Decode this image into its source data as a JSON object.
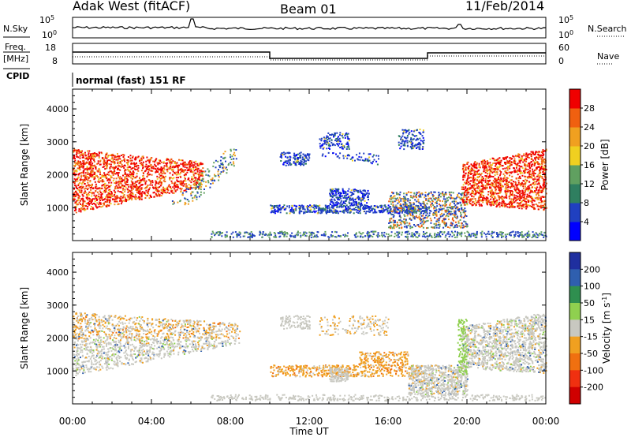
{
  "header": {
    "site": "Adak West (fitACF)",
    "beam": "Beam 01",
    "date": "11/Feb/2014"
  },
  "labels": {
    "nsky": "N.Sky",
    "nsearch": "N.Search",
    "freq_line1": "Freq.",
    "freq_line2": "[MHz]",
    "nave": "Nave",
    "cpid": "CPID",
    "cpid_value": "normal (fast) 151 RF",
    "noise_tick_top": "10^5",
    "noise_tick_bottom": "10^0",
    "noise_right_top": "10^5",
    "noise_right_bottom": "10^0",
    "freq_tick_top": "18",
    "freq_tick_bottom": "8",
    "nave_tick_top": "60",
    "nave_tick_bottom": "0"
  },
  "chart_data": [
    {
      "type": "heatmap",
      "panel": "power",
      "ylabel": "Slant Range [km]",
      "yticks": [
        "1000",
        "2000",
        "3000",
        "4000"
      ],
      "ylim": [
        0,
        4600
      ],
      "xlim_hours": [
        0,
        24
      ],
      "colorbar": {
        "label": "Power [dB]",
        "ticks": [
          "4",
          "8",
          "12",
          "16",
          "20",
          "24",
          "28"
        ],
        "colors": [
          "#0000ff",
          "#2040c0",
          "#2f7f60",
          "#60a060",
          "#f0d020",
          "#f0a020",
          "#f06010",
          "#f00000"
        ]
      }
    },
    {
      "type": "heatmap",
      "panel": "velocity",
      "ylabel": "Slant Range [km]",
      "yticks": [
        "1000",
        "2000",
        "3000",
        "4000"
      ],
      "ylim": [
        0,
        4600
      ],
      "xlabel": "Time UT",
      "xticks": [
        "00:00",
        "04:00",
        "08:00",
        "12:00",
        "16:00",
        "20:00",
        "00:00"
      ],
      "colorbar": {
        "label": "Velocity [m s^-1]",
        "ticks": [
          "200",
          "100",
          "50",
          "15",
          "-15",
          "-50",
          "-100",
          "-200"
        ],
        "colors": [
          "#1f2f9f",
          "#2f5faf",
          "#2f8f4f",
          "#8fd04f",
          "#c8c8c0",
          "#f0a020",
          "#f07010",
          "#f03010",
          "#d00000"
        ]
      }
    }
  ]
}
